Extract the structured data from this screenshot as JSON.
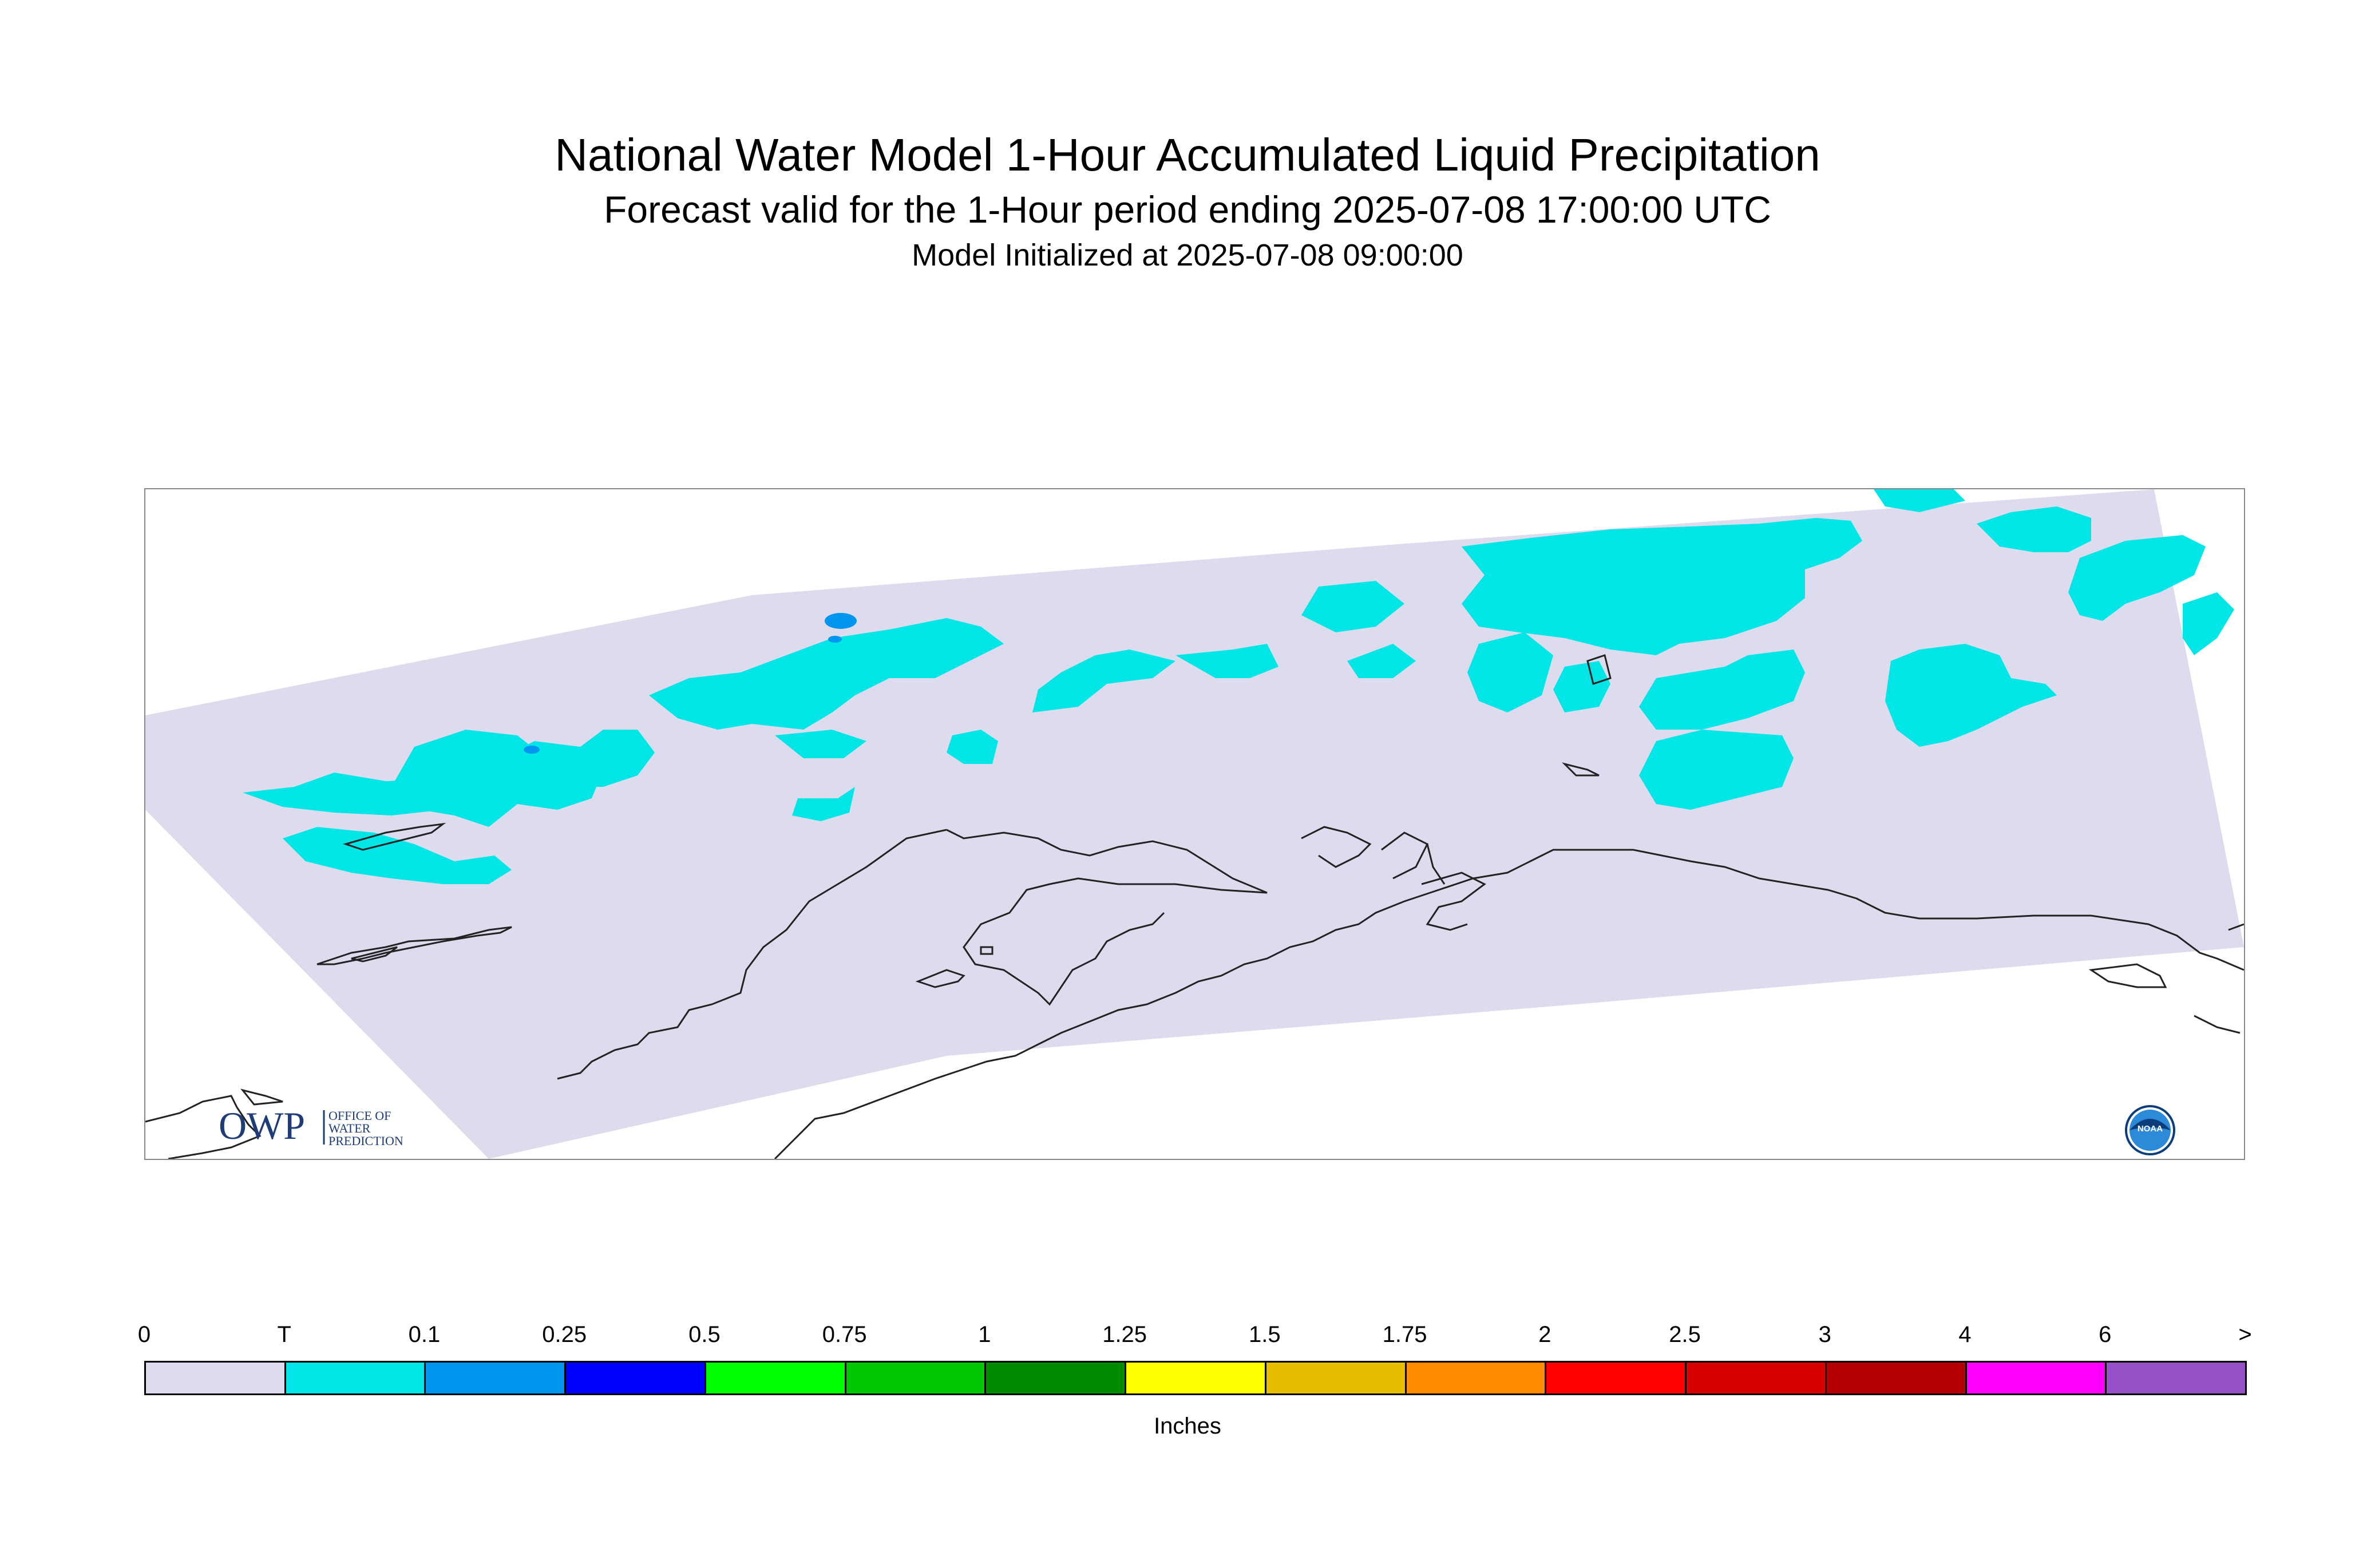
{
  "title": "National Water Model 1-Hour Accumulated Liquid Precipitation",
  "subtitle": "Forecast valid for the 1-Hour period ending 2025-07-08 17:00:00 UTC",
  "init_line": "Model Initialized at 2025-07-08 09:00:00",
  "map": {
    "domain_fill": "#dcdcee",
    "logos": {
      "owp": {
        "mark": "OWP",
        "text_lines": [
          "OFFICE OF",
          "WATER",
          "PREDICTION"
        ],
        "color": "#1e3c78"
      },
      "noaa": {
        "mark": "NOAA",
        "color": "#1f5fa8"
      }
    }
  },
  "legend": {
    "tick_labels": [
      "0",
      "T",
      "0.1",
      "0.25",
      "0.5",
      "0.75",
      "1",
      "1.25",
      "1.5",
      "1.75",
      "2",
      "2.5",
      "3",
      "4",
      "6",
      ">"
    ],
    "colors": [
      "#dcdcee",
      "#00e6e6",
      "#0096f0",
      "#0000ff",
      "#00ff00",
      "#00c800",
      "#008c00",
      "#ffff00",
      "#e6be00",
      "#ff8c00",
      "#ff0000",
      "#d70000",
      "#b40000",
      "#ff00ff",
      "#9650c8"
    ],
    "units": "Inches"
  }
}
